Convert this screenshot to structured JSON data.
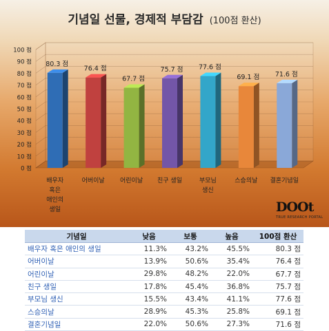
{
  "chart_data": {
    "type": "bar",
    "title": "기념일 선물, 경제적 부담감",
    "subtitle": "(100점 환산)",
    "categories": [
      "배우자\n혹은\n애인의\n생일",
      "어버이날",
      "어린이날",
      "친구 생일",
      "부모님\n생신",
      "스승의날",
      "결혼기념일"
    ],
    "values": [
      80.3,
      76.4,
      67.7,
      75.7,
      77.6,
      69.1,
      71.6
    ],
    "data_labels": [
      "80.3 점",
      "76.4 점",
      "67.7 점",
      "75.7 점",
      "77.6 점",
      "69.1 점",
      "71.6 점"
    ],
    "ylim": [
      0,
      100
    ],
    "yticks": [
      0,
      10,
      20,
      30,
      40,
      50,
      60,
      70,
      80,
      90,
      100
    ],
    "ytick_labels": [
      "0 점",
      "10 점",
      "20 점",
      "30 점",
      "40 점",
      "50 점",
      "60 점",
      "70 점",
      "80 점",
      "90 점",
      "100 점"
    ],
    "bar_colors": [
      "#2f6db5",
      "#c0413f",
      "#92b542",
      "#7356a8",
      "#33a6c9",
      "#e8873a",
      "#8aa8d8"
    ],
    "grid": true,
    "legend": "none"
  },
  "logo": {
    "mark": "DOOt",
    "tagline": "TRUE RESEARCH PORTAL"
  },
  "table": {
    "headers": [
      "기념일",
      "낮음",
      "보통",
      "높음",
      "100점 환산"
    ],
    "rows": [
      [
        "배우자 혹은 애인의 생일",
        "11.3%",
        "43.2%",
        "45.5%",
        "80.3 점"
      ],
      [
        "어버이날",
        "13.9%",
        "50.6%",
        "35.4%",
        "76.4 점"
      ],
      [
        "어린이날",
        "29.8%",
        "48.2%",
        "22.0%",
        "67.7 점"
      ],
      [
        "친구 생일",
        "17.8%",
        "45.4%",
        "36.8%",
        "75.7 점"
      ],
      [
        "부모님 생신",
        "15.5%",
        "43.4%",
        "41.1%",
        "77.6 점"
      ],
      [
        "스승의날",
        "28.9%",
        "45.3%",
        "25.8%",
        "69.1 점"
      ],
      [
        "결혼기념일",
        "22.0%",
        "50.6%",
        "27.3%",
        "71.6 점"
      ]
    ]
  }
}
